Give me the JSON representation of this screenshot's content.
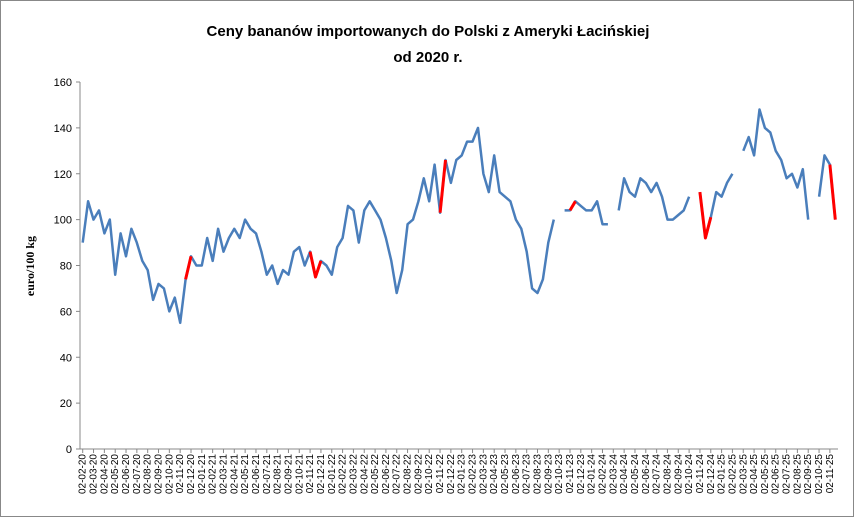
{
  "chart_data": {
    "type": "line",
    "title": [
      "Ceny bananów importowanych do Polski z Ameryki Łacińskiej",
      "od 2020 r."
    ],
    "y_label": "euro/100 kg",
    "categories": [
      "02-02-20",
      null,
      "02-03-20",
      null,
      "02-04-20",
      null,
      "02-05-20",
      null,
      "02-06-20",
      null,
      "02-07-20",
      null,
      "02-08-20",
      null,
      "02-09-20",
      null,
      "02-10-20",
      null,
      "02-11-20",
      null,
      "02-12-20",
      null,
      "02-01-21",
      null,
      "02-02-21",
      null,
      "02-03-21",
      null,
      "02-04-21",
      null,
      "02-05-21",
      null,
      "02-06-21",
      null,
      "02-07-21",
      null,
      "02-08-21",
      null,
      "02-09-21",
      null,
      "02-10-21",
      null,
      "02-11-21",
      null,
      "02-12-21",
      null,
      "02-01-22",
      null,
      "02-02-22",
      null,
      "02-03-22",
      null,
      "02-04-22",
      null,
      "02-05-22",
      null,
      "02-06-22",
      null,
      "02-07-22",
      null,
      "02-08-22",
      null,
      "02-09-22",
      null,
      "02-10-22",
      null,
      "02-11-22",
      null,
      "02-12-22",
      null,
      "02-01-23",
      null,
      "02-02-23",
      null,
      "02-03-23",
      null,
      "02-04-23",
      null,
      "02-05-23",
      null,
      "02-06-23",
      null,
      "02-07-23",
      null,
      "02-08-23",
      null,
      "02-09-23",
      null,
      "02-10-23",
      null,
      "02-11-23",
      null,
      "02-12-23",
      null,
      "02-01-24",
      null,
      "02-02-24",
      null,
      "02-03-24",
      null,
      "02-04-24",
      null,
      "02-05-24",
      null,
      "02-06-24",
      null,
      "02-07-24",
      null,
      "02-08-24",
      null,
      "02-09-24",
      null,
      "02-10-24",
      null,
      "02-11-24",
      null,
      "02-12-24",
      null,
      "02-01-25",
      null,
      "02-02-25",
      null,
      "02-03-25",
      null,
      "02-04-25",
      null,
      "02-05-25",
      null,
      "02-06-25",
      null,
      "02-07-25",
      null,
      "02-08-25",
      null,
      "02-09-25",
      null,
      "02-10-25",
      null,
      "02-11-25",
      null
    ],
    "series": [
      {
        "color": "#4a7ebb",
        "values": [
          90,
          108,
          100,
          104,
          94,
          100,
          76,
          94,
          84,
          96,
          90,
          82,
          78,
          65,
          72,
          70,
          60,
          66,
          55,
          74,
          84,
          80,
          80,
          92,
          82,
          96,
          86,
          92,
          96,
          92,
          100,
          96,
          94,
          86,
          76,
          80,
          72,
          78,
          76,
          86,
          88,
          80,
          86,
          75,
          82,
          80,
          76,
          88,
          92,
          106,
          104,
          90,
          104,
          108,
          104,
          100,
          92,
          82,
          68,
          78,
          98,
          100,
          108,
          118,
          108,
          124,
          103,
          126,
          116,
          126,
          128,
          134,
          134,
          140,
          120,
          112,
          128,
          112,
          110,
          108,
          100,
          96,
          86,
          70,
          68,
          74,
          90,
          100,
          null,
          104,
          104,
          108,
          106,
          104,
          104,
          108,
          98,
          98,
          null,
          104,
          118,
          112,
          110,
          118,
          116,
          112,
          116,
          110,
          100,
          100,
          102,
          104,
          110,
          null,
          112,
          92,
          101,
          112,
          110,
          116,
          120,
          null,
          130,
          136,
          128,
          148,
          140,
          138,
          130,
          126,
          118,
          120,
          114,
          122,
          100,
          null,
          110,
          128,
          124,
          100
        ]
      },
      {
        "color": "#ff0000",
        "values": [
          null,
          null,
          null,
          null,
          null,
          null,
          null,
          null,
          null,
          null,
          null,
          null,
          null,
          null,
          null,
          null,
          null,
          null,
          null,
          74,
          84,
          null,
          null,
          null,
          null,
          null,
          null,
          null,
          null,
          null,
          null,
          null,
          null,
          null,
          null,
          null,
          null,
          null,
          null,
          null,
          null,
          null,
          86,
          75,
          82,
          null,
          null,
          null,
          null,
          null,
          null,
          null,
          null,
          null,
          null,
          null,
          null,
          null,
          null,
          null,
          null,
          null,
          null,
          null,
          null,
          null,
          103,
          126,
          null,
          null,
          null,
          null,
          null,
          null,
          null,
          null,
          null,
          null,
          null,
          null,
          null,
          null,
          null,
          null,
          null,
          null,
          null,
          null,
          null,
          null,
          104,
          108,
          null,
          null,
          null,
          null,
          null,
          null,
          null,
          null,
          null,
          null,
          null,
          null,
          null,
          null,
          null,
          null,
          null,
          null,
          null,
          null,
          null,
          null,
          112,
          92,
          101,
          null,
          null,
          null,
          null,
          null,
          null,
          null,
          null,
          null,
          null,
          null,
          null,
          null,
          null,
          null,
          null,
          null,
          null,
          null,
          null,
          null,
          124,
          100
        ]
      }
    ],
    "ylim": [
      0,
      160
    ],
    "yticks": [
      0,
      20,
      40,
      60,
      80,
      100,
      120,
      140,
      160
    ],
    "grid": false
  }
}
